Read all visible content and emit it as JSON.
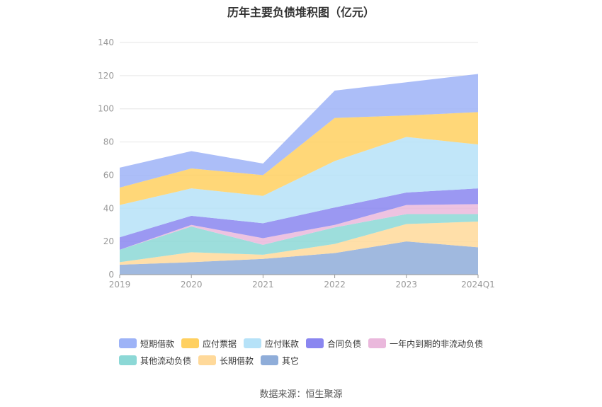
{
  "chart_data": {
    "type": "area",
    "title": "历年主要负债堆积图（亿元）",
    "categories": [
      "2019",
      "2020",
      "2021",
      "2022",
      "2023",
      "2024Q1"
    ],
    "ylim": [
      0,
      140
    ],
    "yticks": [
      0,
      20,
      40,
      60,
      80,
      100,
      120,
      140
    ],
    "grid": true,
    "stacked": true,
    "legend_position": "bottom",
    "series": [
      {
        "name": "其它",
        "color": "#8fadd9",
        "values": [
          6,
          7.5,
          9.5,
          13,
          20,
          16.5
        ]
      },
      {
        "name": "长期借款",
        "color": "#ffd99a",
        "values": [
          1.5,
          6,
          2.5,
          5.5,
          10.5,
          15.5
        ]
      },
      {
        "name": "其他流动负债",
        "color": "#8cd8d6",
        "values": [
          7.5,
          15.5,
          6,
          10,
          6,
          4.5
        ]
      },
      {
        "name": "一年内到期的非流动负债",
        "color": "#eab8dc",
        "values": [
          0,
          1,
          4,
          1.5,
          5.5,
          6
        ]
      },
      {
        "name": "合同负债",
        "color": "#8a86f0",
        "values": [
          7.5,
          5.5,
          9,
          10.5,
          7.5,
          9.5
        ]
      },
      {
        "name": "应付账款",
        "color": "#b6e2f8",
        "values": [
          19.5,
          16.5,
          16.5,
          28,
          33.5,
          26.5
        ]
      },
      {
        "name": "应付票据",
        "color": "#ffd060",
        "values": [
          10.5,
          12,
          12.5,
          26,
          13,
          19.5
        ]
      },
      {
        "name": "短期借款",
        "color": "#9db3f7",
        "values": [
          12,
          10.5,
          7,
          16.5,
          20,
          23
        ]
      }
    ]
  },
  "source_text": "数据来源：恒生聚源"
}
